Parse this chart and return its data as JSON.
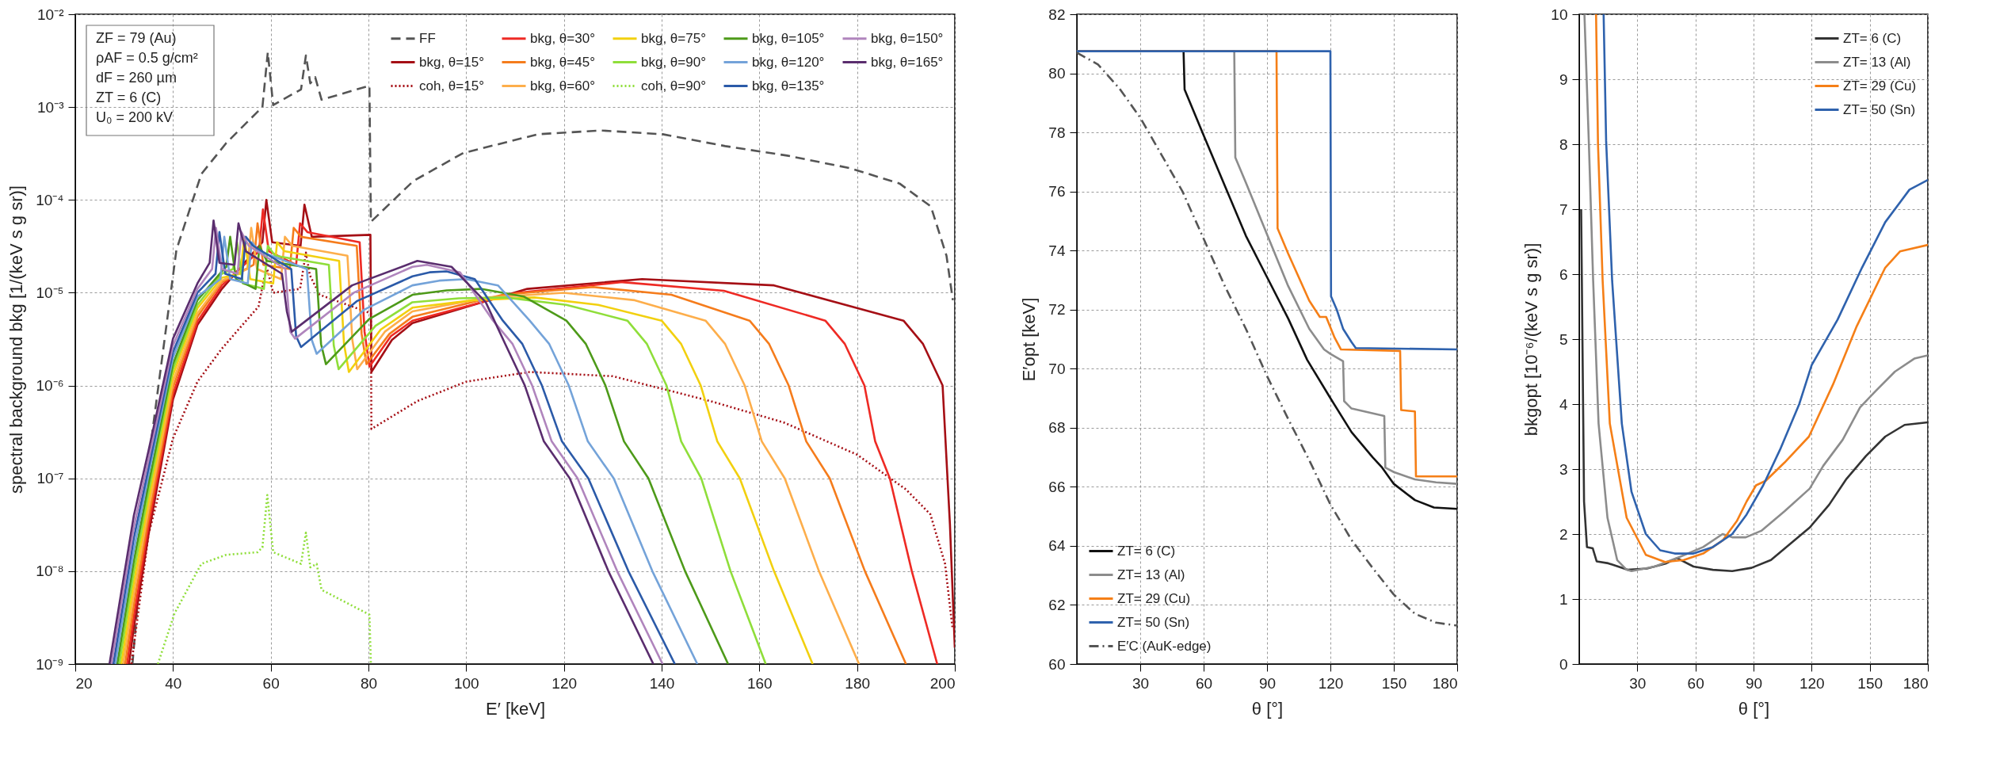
{
  "chart_data": [
    {
      "type": "line",
      "xlabel": "E′ [keV]",
      "ylabel": "spectral background bkg [1/(keV s g sr)]",
      "xlim": [
        20,
        200
      ],
      "ylim": [
        1e-09,
        0.01
      ],
      "xticks": [
        20,
        40,
        60,
        80,
        100,
        120,
        140,
        160,
        180,
        200
      ],
      "yticks": [
        {
          "value": 1e-09,
          "label": "10⁻⁹"
        },
        {
          "value": 1e-08,
          "label": "10⁻⁸"
        },
        {
          "value": 1e-07,
          "label": "10⁻⁷"
        },
        {
          "value": 1e-06,
          "label": "10⁻⁶"
        },
        {
          "value": 1e-05,
          "label": "10⁻⁵"
        },
        {
          "value": 0.0001,
          "label": "10⁻⁴"
        },
        {
          "value": 0.001,
          "label": "10⁻³"
        },
        {
          "value": 0.01,
          "label": "10⁻²"
        }
      ],
      "log": "y",
      "grid": true,
      "legend": "top right",
      "annotations": [
        "ZF = 79 (Au)",
        "ρAF = 0.5 g/cm²",
        "dF = 260 µm",
        "ZT = 6 (C)",
        "U₀ = 200 kV"
      ],
      "series": [
        {
          "name": "FF",
          "color": "#555555",
          "line_style": "dashed",
          "x": [
            31.7,
            35.6,
            40.7,
            45.8,
            50.9,
            57.3,
            58.3,
            59.4,
            60.5,
            62.4,
            66.2,
            67.2,
            68.1,
            69.1,
            70.4,
            80.2,
            80.5,
            89.2,
            99.4,
            114.7,
            127.5,
            140.2,
            153,
            165.7,
            178.5,
            188.7,
            195.1,
            198.3,
            199.6
          ],
          "values": [
            1e-09,
            2.7e-07,
            2.9e-05,
            0.00019,
            0.00041,
            0.00089,
            0.001,
            0.0039,
            0.00105,
            0.0012,
            0.00155,
            0.0036,
            0.0018,
            0.0021,
            0.0012,
            0.0017,
            5.8e-05,
            0.00016,
            0.00032,
            0.00051,
            0.00056,
            0.00051,
            0.00038,
            0.0003,
            0.00022,
            0.00015,
            8.5e-05,
            2.5e-05,
            8.3e-06
          ]
        },
        {
          "name": "bkg, θ=15°",
          "color": "#a50f15",
          "x": [
            31,
            32,
            35,
            40,
            45,
            50,
            58.3,
            59.1,
            60.3,
            66.1,
            66.9,
            68.4,
            80.4,
            80.6,
            84.8,
            89,
            112.5,
            136,
            163,
            189.5,
            193.5,
            197.5,
            199,
            200
          ],
          "values": [
            1e-09,
            2.5e-09,
            2.5e-08,
            7.1e-07,
            4.5e-06,
            1.1e-05,
            3.5e-05,
            0.0001,
            3.5e-05,
            3.2e-05,
            8.9e-05,
            4e-05,
            4.2e-05,
            1.4e-06,
            3.1e-06,
            4.7e-06,
            1.1e-05,
            1.4e-05,
            1.2e-05,
            5e-06,
            2.8e-06,
            1e-06,
            3.2e-08,
            1.5e-09
          ]
        },
        {
          "name": "coh, θ=15°",
          "color": "#a50f15",
          "line_style": "dotted",
          "x": [
            31.5,
            35,
            40,
            45,
            50,
            57.5,
            58.6,
            59.3,
            60.5,
            66,
            67.2,
            68,
            70,
            80.5,
            80.6,
            90,
            100,
            113,
            130,
            150,
            165,
            180,
            190,
            195,
            198,
            199.5
          ],
          "values": [
            1e-09,
            2.5e-08,
            2.7e-07,
            1.1e-06,
            2.5e-06,
            7.1e-06,
            1.4e-05,
            1.8e-05,
            1e-05,
            1.1e-05,
            2.7e-05,
            1.55e-05,
            9.5e-06,
            6e-06,
            3.4e-07,
            6.8e-07,
            1.1e-06,
            1.4e-06,
            1.26e-06,
            6.8e-07,
            4e-07,
            1.8e-07,
            7.6e-08,
            4.1e-08,
            1.2e-08,
            2.5e-09
          ]
        },
        {
          "name": "bkg, θ=30°",
          "color": "#ee2a24",
          "x": [
            30.6,
            32,
            35,
            40,
            45,
            50,
            57.6,
            58.4,
            59.6,
            65.2,
            66,
            67.5,
            78.2,
            79.2,
            80.2,
            84.6,
            89,
            110.5,
            132,
            152.75,
            173.5,
            177.5,
            181.5,
            183.7,
            186.7,
            191.2,
            196.4
          ],
          "values": [
            1e-09,
            3.3e-09,
            3.1e-08,
            8.1e-07,
            4.9e-06,
            1.2e-05,
            2.8e-05,
            7.9e-05,
            2.8e-05,
            2e-05,
            5.6e-05,
            4.5e-05,
            3.5e-05,
            3.8e-06,
            1.6e-06,
            3.4e-06,
            5e-06,
            1e-05,
            1.3e-05,
            1.05e-05,
            5e-06,
            2.8e-06,
            1e-06,
            2.5e-07,
            1e-07,
            1e-08,
            1e-09
          ]
        },
        {
          "name": "bkg, θ=45°",
          "color": "#f57c1c",
          "x": [
            30.2,
            32,
            35,
            40,
            45,
            50,
            56.5,
            57.3,
            58.5,
            63.9,
            64.7,
            66.2,
            77.6,
            78.6,
            79.6,
            84.3,
            89,
            107.5,
            126,
            142,
            158,
            162,
            166,
            169.6,
            174.4,
            181.6,
            190
          ],
          "values": [
            1e-09,
            4.4e-09,
            3.8e-08,
            9.5e-07,
            5.5e-06,
            1.3e-05,
            2e-05,
            5.6e-05,
            2e-05,
            1.8e-05,
            5e-05,
            4e-05,
            3.2e-05,
            3.6e-06,
            1.7e-06,
            3.6e-06,
            5.5e-06,
            9.5e-06,
            1.15e-05,
            9.5e-06,
            5e-06,
            2.8e-06,
            1e-06,
            2.5e-07,
            1e-07,
            1e-08,
            1e-09
          ]
        },
        {
          "name": "bkg, θ=60°",
          "color": "#fdae4b",
          "x": [
            29.8,
            32,
            35,
            40,
            45,
            50,
            55.2,
            56,
            57.2,
            62.1,
            62.9,
            64.4,
            75.7,
            76.7,
            77.7,
            83.35,
            89,
            104.5,
            120,
            134.5,
            149,
            153,
            157,
            160.5,
            165.2,
            172.2,
            180.4
          ],
          "values": [
            1e-09,
            5.8e-09,
            4.7e-08,
            1.1e-06,
            6e-06,
            1.35e-05,
            1.8e-05,
            5e-05,
            1.8e-05,
            1.4e-05,
            4e-05,
            3.2e-05,
            2.5e-05,
            3.1e-06,
            1.5e-06,
            3.8e-06,
            6.3e-06,
            8.9e-06,
            1e-05,
            8.3e-06,
            5e-06,
            2.8e-06,
            1e-06,
            2.5e-07,
            1e-07,
            1e-08,
            1e-09
          ]
        },
        {
          "name": "bkg, θ=75°",
          "color": "#f2d00f",
          "x": [
            29.4,
            32,
            35,
            40,
            45,
            50,
            53.8,
            54.6,
            55.8,
            60.5,
            61.3,
            62.8,
            74,
            75,
            76,
            82.5,
            89,
            101.5,
            114,
            127,
            140,
            144,
            148,
            151.4,
            156,
            163,
            170.9
          ],
          "values": [
            1e-09,
            7.6e-09,
            5.8e-08,
            1.3e-06,
            6.8e-06,
            1.45e-05,
            1.6e-05,
            4e-05,
            1.4e-05,
            1.26e-05,
            3.5e-05,
            2.8e-05,
            2.2e-05,
            2.8e-06,
            1.4e-06,
            4e-06,
            6.9e-06,
            8.3e-06,
            8.9e-06,
            7.4e-06,
            5e-06,
            2.8e-06,
            1e-06,
            2.5e-07,
            1e-07,
            1e-08,
            1e-09
          ]
        },
        {
          "name": "bkg, θ=90°",
          "color": "#8fde3a",
          "x": [
            29,
            32,
            35,
            40,
            45,
            50,
            52.3,
            53.1,
            54.3,
            58.6,
            59.4,
            60.9,
            71.9,
            72.9,
            73.9,
            81.45,
            89,
            98.5,
            108,
            120.5,
            133,
            137,
            141,
            144,
            148.1,
            154.1,
            161.3
          ],
          "values": [
            1e-09,
            1e-08,
            7.1e-08,
            1.5e-06,
            7.4e-06,
            1.6e-05,
            1.8e-05,
            3.5e-05,
            1.26e-05,
            1.1e-05,
            3.2e-05,
            2.5e-05,
            2e-05,
            2.7e-06,
            1.5e-06,
            4.4e-06,
            7.9e-06,
            8.7e-06,
            8.9e-06,
            7.4e-06,
            5e-06,
            2.8e-06,
            1e-06,
            2.5e-07,
            1e-07,
            1e-08,
            1e-09
          ]
        },
        {
          "name": "coh, θ=90°",
          "color": "#8fde3a",
          "line_style": "dotted",
          "x": [
            36.9,
            40.3,
            45.8,
            50.9,
            57.3,
            58.3,
            59.3,
            60.5,
            66.2,
            67.2,
            68.1,
            69.4,
            70.4,
            80.2,
            80.5
          ],
          "values": [
            1e-09,
            3.5e-09,
            1.2e-08,
            1.5e-08,
            1.6e-08,
            1.8e-08,
            6.6e-08,
            1.6e-08,
            1.2e-08,
            2.6e-08,
            1.1e-08,
            1.2e-08,
            6.3e-09,
            3.4e-09,
            1e-09
          ]
        },
        {
          "name": "bkg, θ=105°",
          "color": "#4d9a19",
          "x": [
            28.6,
            32,
            35,
            40,
            45,
            50,
            50.9,
            51.7,
            52.9,
            56.9,
            57.7,
            59.2,
            69.3,
            70.3,
            71.3,
            80.15,
            89,
            96,
            103,
            111.75,
            120.5,
            124.5,
            128.5,
            132.3,
            137.3,
            144.8,
            153.6
          ],
          "values": [
            1e-09,
            1.3e-08,
            8.7e-08,
            1.7e-06,
            8.3e-06,
            1.7e-05,
            1.9e-05,
            4e-05,
            1.4e-05,
            1.1e-05,
            3.2e-05,
            2.2e-05,
            1.8e-05,
            2.8e-06,
            1.7e-06,
            5.2e-06,
            9.5e-06,
            1.06e-05,
            1.1e-05,
            9.1e-06,
            5e-06,
            2.8e-06,
            1e-06,
            2.5e-07,
            1e-07,
            1e-08,
            1e-09
          ]
        },
        {
          "name": "bkg, θ=120°",
          "color": "#74a3d9",
          "x": [
            28.2,
            32,
            35,
            40,
            45,
            49.7,
            50.5,
            51.7,
            55.3,
            56.1,
            57.6,
            67.4,
            68.4,
            69.4,
            79.2,
            89,
            94.5,
            100,
            106.5,
            113,
            117,
            121,
            124.9,
            130.2,
            138.1,
            147.3
          ],
          "values": [
            1e-09,
            1.7e-08,
            1.1e-07,
            2e-06,
            9.1e-06,
            1.4e-05,
            4e-05,
            1.4e-05,
            1.26e-05,
            3.5e-05,
            2.8e-05,
            1.8e-05,
            3.1e-06,
            2.2e-06,
            6.6e-06,
            1.2e-05,
            1.35e-05,
            1.4e-05,
            1.2e-05,
            5e-06,
            2.8e-06,
            1e-06,
            2.5e-07,
            1e-07,
            1e-08,
            1e-09
          ]
        },
        {
          "name": "bkg, θ=135°",
          "color": "#2b5aa8",
          "x": [
            27.8,
            32,
            35,
            40,
            45,
            48.7,
            49.5,
            50.7,
            54.1,
            54.9,
            56.4,
            64.2,
            65.2,
            66.2,
            77.6,
            89,
            92.5,
            96,
            101.75,
            107.5,
            111.5,
            115.5,
            119.6,
            125,
            133.2,
            142.7
          ],
          "values": [
            1e-09,
            2.3e-08,
            1.3e-07,
            2.3e-06,
            1e-05,
            1.6e-05,
            4.5e-05,
            1.6e-05,
            1.4e-05,
            4e-05,
            3.2e-05,
            1.8e-05,
            3.4e-06,
            2.6e-06,
            8.1e-06,
            1.5e-05,
            1.66e-05,
            1.7e-05,
            1.4e-05,
            5e-06,
            2.8e-06,
            1e-06,
            2.5e-07,
            1e-07,
            1e-08,
            1e-09
          ]
        },
        {
          "name": "bkg, θ=150°",
          "color": "#b085bd",
          "x": [
            27.4,
            32,
            35,
            40,
            45,
            48,
            48.8,
            50,
            53.2,
            54,
            55.5,
            63,
            64,
            65,
            77,
            89,
            92,
            98.75,
            105.5,
            109.5,
            113.5,
            117.5,
            122.8,
            130.9,
            140.2
          ],
          "values": [
            1e-09,
            3e-08,
            1.6e-07,
            2.7e-06,
            1.1e-05,
            1.8e-05,
            5e-05,
            1.8e-05,
            1.6e-05,
            4.5e-05,
            3.2e-05,
            1.8e-05,
            3.8e-06,
            3.2e-06,
            1e-05,
            1.9e-05,
            2e-05,
            1.66e-05,
            5e-06,
            2.8e-06,
            1e-06,
            2.5e-07,
            1e-07,
            1e-08,
            1e-09
          ]
        },
        {
          "name": "bkg, θ=165°",
          "color": "#5a2d6e",
          "x": [
            27,
            32,
            35,
            40,
            45,
            47.5,
            48.3,
            49.5,
            52.6,
            53.4,
            54.9,
            62.3,
            63.3,
            64.3,
            76.65,
            90,
            97,
            104,
            108,
            112,
            115.9,
            121.2,
            129.1,
            138.3
          ],
          "values": [
            1e-09,
            4e-08,
            2e-07,
            3.2e-06,
            1.26e-05,
            2.1e-05,
            6e-05,
            2.1e-05,
            2e-05,
            5.6e-05,
            2.8e-05,
            1.6e-05,
            6.3e-06,
            3.8e-06,
            1.2e-05,
            2.2e-05,
            1.9e-05,
            7.9e-06,
            2.8e-06,
            1e-06,
            2.5e-07,
            1e-07,
            1e-08,
            1e-09
          ]
        }
      ]
    },
    {
      "type": "line",
      "xlabel": "θ [°]",
      "ylabel": "E′opt [keV]",
      "xlim": [
        0,
        180
      ],
      "ylim": [
        60,
        82
      ],
      "xticks": [
        30,
        60,
        90,
        120,
        150,
        180
      ],
      "yticks": [
        60,
        62,
        64,
        66,
        68,
        70,
        72,
        74,
        76,
        78,
        80,
        82
      ],
      "grid": true,
      "legend": "bottom left",
      "series": [
        {
          "name": "ZT= 6 (C)",
          "color": "#111111",
          "x": [
            0,
            50.5,
            51,
            60,
            70,
            80,
            90,
            100,
            109,
            120,
            130,
            140,
            144.5,
            150,
            160,
            169,
            180
          ],
          "values": [
            80.75,
            80.75,
            79.45,
            77.9,
            76.2,
            74.5,
            73.1,
            71.7,
            70.3,
            69.0,
            67.85,
            67.0,
            66.65,
            66.1,
            65.55,
            65.3,
            65.25
          ]
        },
        {
          "name": "ZT= 13 (Al)",
          "color": "#8c8c8c",
          "x": [
            0,
            74.5,
            75,
            80,
            90,
            100,
            110,
            117,
            120,
            126,
            126.5,
            130,
            145.5,
            146,
            150,
            160,
            170,
            180
          ],
          "values": [
            80.75,
            80.75,
            77.15,
            76.3,
            74.55,
            72.8,
            71.35,
            70.65,
            70.5,
            70.25,
            68.9,
            68.65,
            68.4,
            66.65,
            66.5,
            66.25,
            66.15,
            66.1
          ]
        },
        {
          "name": "ZT= 29 (Cu)",
          "color": "#f57f17",
          "x": [
            0,
            94.5,
            95,
            100,
            110,
            115,
            118,
            122,
            125,
            153,
            153.5,
            160,
            160.5,
            180
          ],
          "values": [
            80.75,
            80.75,
            74.75,
            73.9,
            72.3,
            71.75,
            71.75,
            71.05,
            70.65,
            70.6,
            68.6,
            68.55,
            66.35,
            66.35
          ]
        },
        {
          "name": "ZT= 50 (Sn)",
          "color": "#2f62ad",
          "x": [
            0,
            120,
            120.3,
            123,
            126,
            130,
            132,
            180
          ],
          "values": [
            80.75,
            80.75,
            72.45,
            72.0,
            71.35,
            70.9,
            70.7,
            70.65
          ]
        },
        {
          "name": "E′C (AuK-edge)",
          "color": "#555555",
          "line_style": "dashdot",
          "x": [
            0,
            10,
            20,
            30,
            40,
            50,
            60,
            70,
            80,
            90,
            100,
            110,
            120,
            130,
            140,
            150,
            160,
            170,
            180
          ],
          "values": [
            80.7,
            80.3,
            79.5,
            78.5,
            77.25,
            76.0,
            74.4,
            72.8,
            71.35,
            69.75,
            68.3,
            66.9,
            65.4,
            64.2,
            63.25,
            62.35,
            61.7,
            61.4,
            61.3
          ]
        }
      ]
    },
    {
      "type": "line",
      "xlabel": "θ [°]",
      "ylabel": "bkgopt [10⁻⁶/(keV s g sr)]",
      "xlim": [
        0,
        180
      ],
      "ylim": [
        0,
        10
      ],
      "xticks": [
        30,
        60,
        90,
        120,
        150,
        180
      ],
      "yticks": [
        0,
        1,
        2,
        3,
        4,
        5,
        6,
        7,
        8,
        9,
        10
      ],
      "grid": true,
      "legend": "top right",
      "series": [
        {
          "name": "ZT= 6 (C)",
          "color": "#333333",
          "x": [
            1,
            2.5,
            4,
            7,
            9,
            15,
            25,
            35,
            45,
            50.5,
            59,
            69,
            79,
            89,
            99,
            109,
            119,
            129,
            138,
            148,
            158,
            168,
            180
          ],
          "values": [
            7.0,
            2.5,
            1.8,
            1.78,
            1.58,
            1.55,
            1.45,
            1.47,
            1.55,
            1.63,
            1.5,
            1.45,
            1.43,
            1.48,
            1.6,
            1.85,
            2.1,
            2.45,
            2.85,
            3.2,
            3.5,
            3.68,
            3.72
          ]
        },
        {
          "name": "ZT= 13 (Al)",
          "color": "#8c8c8c",
          "x": [
            2.7,
            5,
            7.2,
            10,
            14.6,
            19.6,
            24.5,
            27,
            39,
            52,
            64,
            74,
            79,
            86,
            94,
            106,
            119,
            126,
            136,
            145,
            153,
            163,
            173,
            180
          ],
          "values": [
            10,
            8.0,
            5.9,
            3.7,
            2.25,
            1.6,
            1.45,
            1.43,
            1.5,
            1.65,
            1.8,
            2.0,
            1.95,
            1.95,
            2.05,
            2.35,
            2.7,
            3.05,
            3.45,
            3.95,
            4.2,
            4.5,
            4.7,
            4.75
          ]
        },
        {
          "name": "ZT= 29 (Cu)",
          "color": "#f57f17",
          "x": [
            8.7,
            9.7,
            12.1,
            15.8,
            24.5,
            34.4,
            44.3,
            54,
            64,
            74,
            81.4,
            86.4,
            91.3,
            96.3,
            106,
            118.6,
            131,
            143.3,
            158,
            165.6,
            180
          ],
          "values": [
            10,
            8.0,
            5.9,
            3.7,
            2.25,
            1.68,
            1.57,
            1.6,
            1.7,
            1.9,
            2.2,
            2.5,
            2.75,
            2.82,
            3.1,
            3.5,
            4.3,
            5.2,
            6.1,
            6.35,
            6.45
          ]
        },
        {
          "name": "ZT= 50 (Sn)",
          "color": "#2f62ad",
          "x": [
            12.6,
            13.9,
            17,
            22,
            27,
            34.4,
            41.8,
            49.3,
            59,
            69,
            79,
            86.4,
            95,
            103.7,
            113.6,
            120,
            133.4,
            146,
            158,
            170.5,
            180
          ],
          "values": [
            10,
            8.05,
            5.9,
            3.7,
            2.65,
            2.0,
            1.75,
            1.7,
            1.7,
            1.8,
            2.0,
            2.3,
            2.75,
            3.3,
            4.0,
            4.6,
            5.3,
            6.1,
            6.8,
            7.3,
            7.45
          ]
        }
      ]
    }
  ]
}
